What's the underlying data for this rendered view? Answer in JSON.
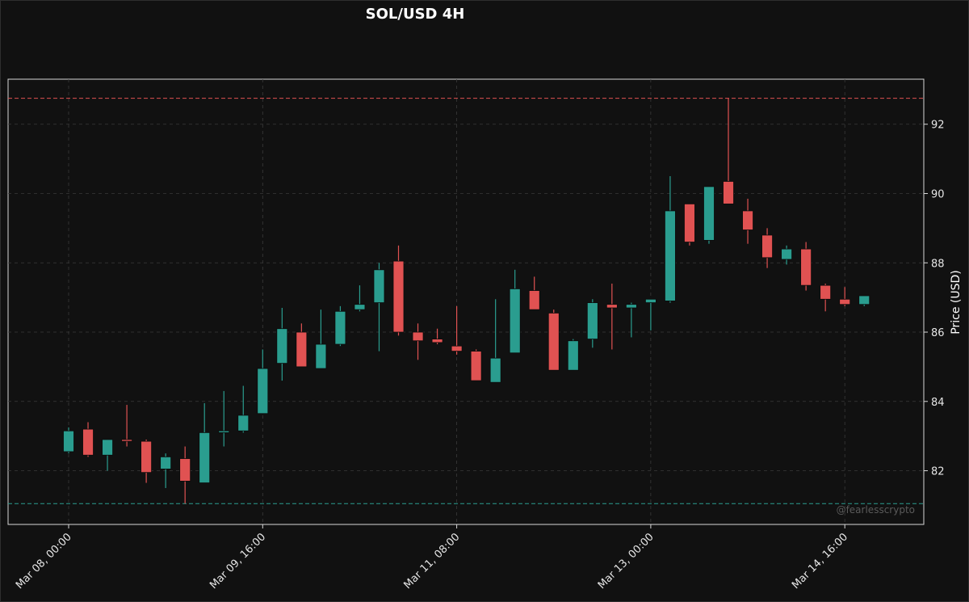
{
  "chart_data": {
    "type": "candlestick",
    "title": "SOL/USD 4H",
    "ylabel": "Price (USD)",
    "xlabel": "",
    "ylim": [
      80.45,
      93.3
    ],
    "yticks": [
      82,
      84,
      86,
      88,
      90,
      92
    ],
    "grid": true,
    "xticks": [
      {
        "label": "Mar 08, 00:00",
        "index": 0
      },
      {
        "label": "Mar 09, 16:00",
        "index": 10
      },
      {
        "label": "Mar 11, 08:00",
        "index": 20
      },
      {
        "label": "Mar 13, 00:00",
        "index": 30
      },
      {
        "label": "Mar 14, 16:00",
        "index": 40
      }
    ],
    "reference_lines": [
      {
        "value": 92.75,
        "color": "#e05252",
        "style": "dashed"
      },
      {
        "value": 81.05,
        "color": "#2a9d8f",
        "style": "dashed"
      }
    ],
    "colors": {
      "up": "#2a9d8f",
      "down": "#e05252",
      "background": "#111111",
      "grid": "#3a3a3a"
    },
    "watermark": "@fearlesscrypto",
    "candles": [
      {
        "open": 82.55,
        "high": 83.25,
        "low": 82.5,
        "close": 83.15
      },
      {
        "open": 83.2,
        "high": 83.4,
        "low": 82.4,
        "close": 82.45
      },
      {
        "open": 82.45,
        "high": 82.9,
        "low": 82.0,
        "close": 82.9
      },
      {
        "open": 82.9,
        "high": 83.9,
        "low": 82.7,
        "close": 82.85
      },
      {
        "open": 82.85,
        "high": 82.9,
        "low": 81.65,
        "close": 81.95
      },
      {
        "open": 82.05,
        "high": 82.5,
        "low": 81.5,
        "close": 82.4
      },
      {
        "open": 82.35,
        "high": 82.7,
        "low": 81.05,
        "close": 81.7
      },
      {
        "open": 81.65,
        "high": 83.95,
        "low": 81.65,
        "close": 83.1
      },
      {
        "open": 83.1,
        "high": 84.3,
        "low": 82.7,
        "close": 83.15
      },
      {
        "open": 83.15,
        "high": 84.45,
        "low": 83.1,
        "close": 83.6
      },
      {
        "open": 83.65,
        "high": 85.5,
        "low": 83.65,
        "close": 84.95
      },
      {
        "open": 85.1,
        "high": 86.7,
        "low": 84.6,
        "close": 86.1
      },
      {
        "open": 86.0,
        "high": 86.25,
        "low": 85.0,
        "close": 85.0
      },
      {
        "open": 84.95,
        "high": 86.65,
        "low": 84.95,
        "close": 85.65
      },
      {
        "open": 85.65,
        "high": 86.75,
        "low": 85.6,
        "close": 86.6
      },
      {
        "open": 86.65,
        "high": 87.35,
        "low": 86.6,
        "close": 86.8
      },
      {
        "open": 86.85,
        "high": 88.0,
        "low": 85.45,
        "close": 87.8
      },
      {
        "open": 88.05,
        "high": 88.5,
        "low": 85.9,
        "close": 86.0
      },
      {
        "open": 86.0,
        "high": 86.25,
        "low": 85.2,
        "close": 85.75
      },
      {
        "open": 85.8,
        "high": 86.1,
        "low": 85.65,
        "close": 85.7
      },
      {
        "open": 85.6,
        "high": 86.75,
        "low": 85.35,
        "close": 85.45
      },
      {
        "open": 85.45,
        "high": 85.5,
        "low": 84.6,
        "close": 84.6
      },
      {
        "open": 84.55,
        "high": 86.95,
        "low": 84.55,
        "close": 85.25
      },
      {
        "open": 85.4,
        "high": 87.8,
        "low": 85.4,
        "close": 87.25
      },
      {
        "open": 87.2,
        "high": 87.6,
        "low": 86.65,
        "close": 86.65
      },
      {
        "open": 86.55,
        "high": 86.65,
        "low": 84.9,
        "close": 84.9
      },
      {
        "open": 84.9,
        "high": 85.8,
        "low": 84.9,
        "close": 85.75
      },
      {
        "open": 85.8,
        "high": 86.95,
        "low": 85.55,
        "close": 86.85
      },
      {
        "open": 86.8,
        "high": 87.4,
        "low": 85.5,
        "close": 86.7
      },
      {
        "open": 86.7,
        "high": 86.85,
        "low": 85.85,
        "close": 86.8
      },
      {
        "open": 86.85,
        "high": 86.95,
        "low": 86.05,
        "close": 86.95
      },
      {
        "open": 86.9,
        "high": 90.5,
        "low": 86.85,
        "close": 89.5
      },
      {
        "open": 89.7,
        "high": 89.7,
        "low": 88.5,
        "close": 88.6
      },
      {
        "open": 88.65,
        "high": 90.2,
        "low": 88.55,
        "close": 90.2
      },
      {
        "open": 90.35,
        "high": 92.75,
        "low": 89.7,
        "close": 89.7
      },
      {
        "open": 89.5,
        "high": 89.85,
        "low": 88.55,
        "close": 88.95
      },
      {
        "open": 88.8,
        "high": 89.0,
        "low": 87.85,
        "close": 88.15
      },
      {
        "open": 88.1,
        "high": 88.5,
        "low": 87.95,
        "close": 88.4
      },
      {
        "open": 88.4,
        "high": 88.6,
        "low": 87.2,
        "close": 87.35
      },
      {
        "open": 87.35,
        "high": 87.4,
        "low": 86.6,
        "close": 86.95
      },
      {
        "open": 86.95,
        "high": 87.3,
        "low": 86.75,
        "close": 86.8
      },
      {
        "open": 86.8,
        "high": 87.05,
        "low": 86.75,
        "close": 87.05
      }
    ]
  }
}
